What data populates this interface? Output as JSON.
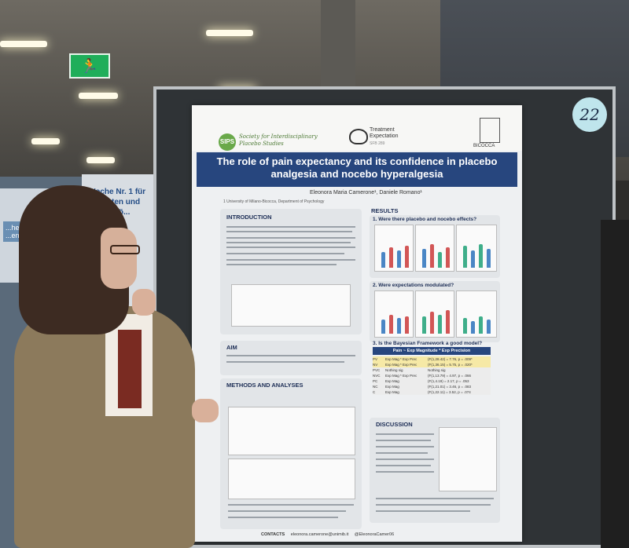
{
  "scene": {
    "board_number": "22",
    "exit_sign": "🏃"
  },
  "background_poster": {
    "text": "Woche Nr. 1 für Patienten und Schlafstö..."
  },
  "background_left_panel": {
    "text": "...henomen ...ention"
  },
  "poster": {
    "sips_logo": "SIPS",
    "sips_text": "Society for Interdisciplinary Placebo Studies",
    "te_text": "Treatment Expectation",
    "te_sub": "SFB 289",
    "bicocca_text": "BICOCCA",
    "title": "The role of pain expectancy and its confidence in placebo analgesia and nocebo hyperalgesia",
    "authors": "Eleonora Maria Camerone¹, Daniele Romano¹",
    "affiliation": "1 University of Milano-Bicocca, Department of Psychology",
    "sections": {
      "introduction": "INTRODUCTION",
      "aim": "AIM",
      "methods": "METHODS AND ANALYSES",
      "results": "RESULTS",
      "q1": "1.   Were there placebo and nocebo effects?",
      "q2": "2.   Were expectations modulated?",
      "q3": "3.   Is the Bayesian Framework a good model?",
      "discussion": "DISCUSSION"
    },
    "table": {
      "head": "Pain ~ Exp Magnitude * Exp Precision",
      "rows": [
        {
          "label": "PV",
          "model": "Exp Mag * Exp Prec",
          "stat": "(F(1,28.42) = 7.76, p = .009*"
        },
        {
          "label": "NV",
          "model": "Exp Mag * Exp Prec",
          "stat": "(F(1,36.15) = 5.75, p = .020*"
        },
        {
          "label": "PVC",
          "model": "Nothing sig",
          "stat": "Nothing sig"
        },
        {
          "label": "NVC",
          "model": "Exp Mag * Exp Prec",
          "stat": "(F(1,13.79) = 4.97, p = .066"
        },
        {
          "label": "PC",
          "model": "Exp Mag",
          "stat": "(F(1,4.19) = 2.17, p = .053"
        },
        {
          "label": "NC",
          "model": "Exp Mag",
          "stat": "(F(1,21.01) = 3.46, p = .083"
        },
        {
          "label": "C",
          "model": "Exp Mag",
          "stat": "(F(1,22.11) = 3.52, p = .074"
        }
      ]
    },
    "contacts_label": "CONTACTS",
    "email": "eleonora.camerone@unimib.it",
    "twitter": "@EleonoraCamer06"
  }
}
